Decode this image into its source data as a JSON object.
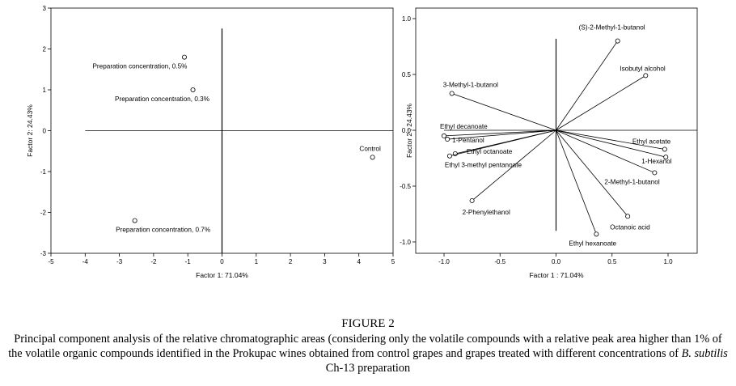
{
  "chart_data": [
    {
      "type": "scatter",
      "xlabel": "Factor 1: 71.04%",
      "ylabel": "Factor 2: 24.43%",
      "xlim": [
        -5,
        5
      ],
      "ylim": [
        -3,
        3
      ],
      "xticks": [
        -5,
        -4,
        -3,
        -2,
        -1,
        0,
        1,
        2,
        3,
        4,
        5
      ],
      "yticks": [
        -3,
        -2,
        -1,
        0,
        1,
        2,
        3
      ],
      "grid": false,
      "points": [
        {
          "label": "Preparation concentration, 0.5%",
          "x": -1.1,
          "y": 1.8
        },
        {
          "label": "Preparation concentration, 0.3%",
          "x": -0.85,
          "y": 1.0
        },
        {
          "label": "Control",
          "x": 4.4,
          "y": -0.65
        },
        {
          "label": "Preparation concentration, 0.7%",
          "x": -2.55,
          "y": -2.2
        }
      ]
    },
    {
      "type": "scatter",
      "xlabel": "Factor 1 : 71.04%",
      "ylabel": "Factor 2 : 24.43%",
      "xlim": [
        -1.0,
        1.0
      ],
      "ylim": [
        -1.0,
        1.0
      ],
      "xticks": [
        "-1.0",
        "-0.5",
        "0.0",
        "0.5",
        "1.0"
      ],
      "yticks": [
        "1.0",
        "0.5",
        "0.0",
        "-0.5",
        "-1.0"
      ],
      "grid": false,
      "points": [
        {
          "label": "(S)-2-Methyl-1-butanol",
          "x": 0.55,
          "y": 0.8
        },
        {
          "label": "Isobutyl alcohol",
          "x": 0.8,
          "y": 0.49
        },
        {
          "label": "3-Methyl-1-butanol",
          "x": -0.93,
          "y": 0.33
        },
        {
          "label": "Ethyl decanoate",
          "x": -1.0,
          "y": -0.05
        },
        {
          "label": "1-Pentanol",
          "x": -0.97,
          "y": -0.08
        },
        {
          "label": "Ethyl octanoate",
          "x": -0.9,
          "y": -0.21
        },
        {
          "label": "Ethyl 3-methyl pentanoate",
          "x": -0.95,
          "y": -0.23
        },
        {
          "label": "Ethyl acetate",
          "x": 0.97,
          "y": -0.17
        },
        {
          "label": "1-Hexanol",
          "x": 0.98,
          "y": -0.24
        },
        {
          "label": "2-Methyl-1-butanol",
          "x": 0.88,
          "y": -0.38
        },
        {
          "label": "2-Phenylethanol",
          "x": -0.75,
          "y": -0.63
        },
        {
          "label": "Octanoic acid",
          "x": 0.64,
          "y": -0.77
        },
        {
          "label": "Ethyl hexanoate",
          "x": 0.36,
          "y": -0.93
        }
      ]
    }
  ],
  "figure": {
    "title": "FIGURE 2",
    "caption_part1": "Principal component analysis of the relative chromatographic areas (considering only the volatile compounds with a relative peak area higher than 1% of the volatile organic compounds identified in the Prokupac wines obtained from control grapes and grapes treated with different concentrations of ",
    "caption_italic": "B. subtilis",
    "caption_part2": " Ch-13 preparation"
  }
}
